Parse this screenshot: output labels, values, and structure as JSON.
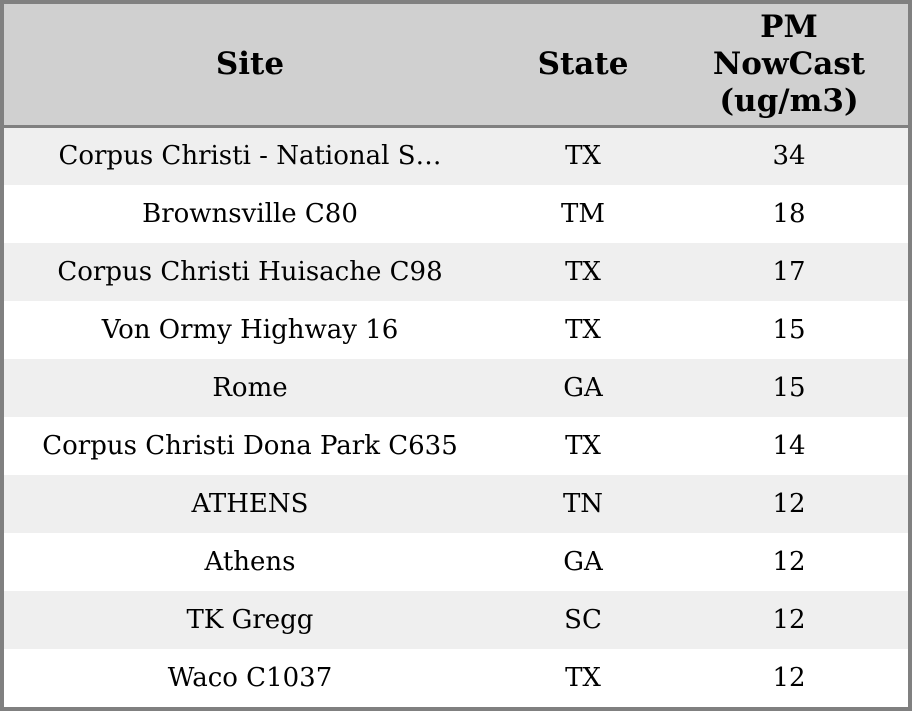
{
  "colors": {
    "border": "#808080",
    "header_bg": "#d0d0d0",
    "row_alt_bg": "#efefef",
    "row_bg": "#ffffff",
    "text": "#000000"
  },
  "table": {
    "columns": [
      {
        "label": "Site"
      },
      {
        "label": "State"
      },
      {
        "label": "PM\nNowCast\n(ug/m3)"
      }
    ],
    "rows": [
      {
        "site": "Corpus Christi - National S…",
        "state": "TX",
        "pm_nowcast": "34"
      },
      {
        "site": "Brownsville C80",
        "state": "TM",
        "pm_nowcast": "18"
      },
      {
        "site": "Corpus Christi Huisache C98",
        "state": "TX",
        "pm_nowcast": "17"
      },
      {
        "site": "Von Ormy Highway 16",
        "state": "TX",
        "pm_nowcast": "15"
      },
      {
        "site": "Rome",
        "state": "GA",
        "pm_nowcast": "15"
      },
      {
        "site": "Corpus Christi Dona Park C635",
        "state": "TX",
        "pm_nowcast": "14"
      },
      {
        "site": "ATHENS",
        "state": "TN",
        "pm_nowcast": "12"
      },
      {
        "site": "Athens",
        "state": "GA",
        "pm_nowcast": "12"
      },
      {
        "site": "TK Gregg",
        "state": "SC",
        "pm_nowcast": "12"
      },
      {
        "site": "Waco C1037",
        "state": "TX",
        "pm_nowcast": "12"
      }
    ]
  },
  "chart_data": {
    "type": "table",
    "title": "",
    "columns": [
      "Site",
      "State",
      "PM NowCast (ug/m3)"
    ],
    "rows": [
      [
        "Corpus Christi - National S…",
        "TX",
        34
      ],
      [
        "Brownsville C80",
        "TM",
        18
      ],
      [
        "Corpus Christi Huisache C98",
        "TX",
        17
      ],
      [
        "Von Ormy Highway 16",
        "TX",
        15
      ],
      [
        "Rome",
        "GA",
        15
      ],
      [
        "Corpus Christi Dona Park C635",
        "TX",
        14
      ],
      [
        "ATHENS",
        "TN",
        12
      ],
      [
        "Athens",
        "GA",
        12
      ],
      [
        "TK Gregg",
        "SC",
        12
      ],
      [
        "Waco C1037",
        "TX",
        12
      ]
    ],
    "layout_hints": {
      "header_background": "#d0d0d0",
      "alternating_row_colors": [
        "#efefef",
        "#ffffff"
      ],
      "text_align": "center",
      "sorted_by": "PM NowCast (ug/m3) descending"
    }
  }
}
